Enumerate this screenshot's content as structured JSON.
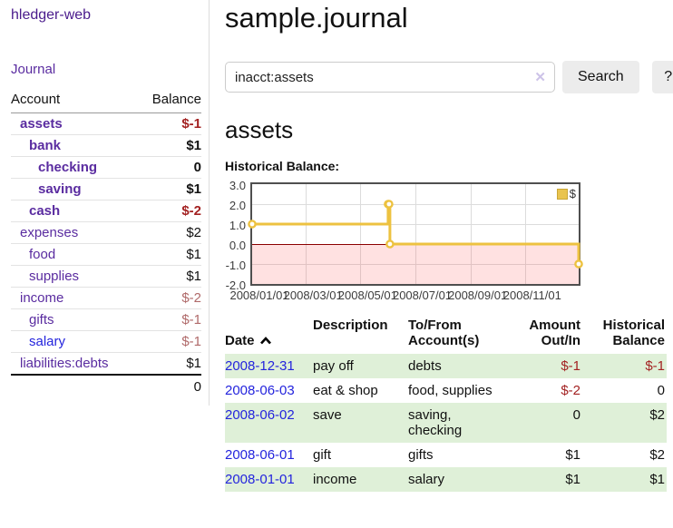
{
  "brand": {
    "title": "hledger-web"
  },
  "sidebar": {
    "journal_link": "Journal",
    "accounts": {
      "col_account": "Account",
      "col_balance": "Balance",
      "rows": [
        {
          "name": "assets",
          "balance": "$-1"
        },
        {
          "name": "bank",
          "balance": "$1"
        },
        {
          "name": "checking",
          "balance": "0"
        },
        {
          "name": "saving",
          "balance": "$1"
        },
        {
          "name": "cash",
          "balance": "$-2"
        },
        {
          "name": "expenses",
          "balance": "$2"
        },
        {
          "name": "food",
          "balance": "$1"
        },
        {
          "name": "supplies",
          "balance": "$1"
        },
        {
          "name": "income",
          "balance": "$-2"
        },
        {
          "name": "gifts",
          "balance": "$-1"
        },
        {
          "name": "salary",
          "balance": "$-1"
        },
        {
          "name": "liabilities:debts",
          "balance": "$1"
        }
      ],
      "total": "0"
    }
  },
  "main": {
    "title": "sample.journal",
    "search": {
      "value": "inacct:assets",
      "clear_icon": "✕",
      "search_button": "Search",
      "help_button": "?"
    },
    "account_heading": "assets",
    "section_label": "Historical Balance:"
  },
  "chart_data": {
    "type": "line",
    "step": true,
    "title": "Historical Balance",
    "series": [
      {
        "name": "$",
        "color": "#edc240",
        "points": [
          [
            "2008-01-01",
            1
          ],
          [
            "2008-06-01",
            2
          ],
          [
            "2008-06-02",
            2
          ],
          [
            "2008-06-03",
            0
          ],
          [
            "2008-12-31",
            -1
          ]
        ]
      }
    ],
    "xrange": [
      "2008-01-01",
      "2008-12-31"
    ],
    "ylim": [
      -2,
      3
    ],
    "yticks": [
      "3.0",
      "2.0",
      "1.0",
      "0.0",
      "-1.0",
      "-2.0"
    ],
    "xticks": [
      "2008/01/01",
      "2008/03/01",
      "2008/05/01",
      "2008/07/01",
      "2008/09/01",
      "2008/11/01"
    ],
    "legend": "$",
    "legend_position": "top-right",
    "grid": true,
    "zero_line_color": "#8b0000",
    "negative_fill": "rgba(255,70,70,0.16)"
  },
  "register": {
    "headers": {
      "date": "Date",
      "description": "Description",
      "accounts": "To/From\nAccount(s)",
      "amount": "Amount\nOut/In",
      "balance": "Historical\nBalance"
    },
    "rows": [
      {
        "date": "2008-12-31",
        "description": "pay off",
        "accounts": "debts",
        "amount": "$-1",
        "balance": "$-1"
      },
      {
        "date": "2008-06-03",
        "description": "eat & shop",
        "accounts": "food, supplies",
        "amount": "$-2",
        "balance": "0"
      },
      {
        "date": "2008-06-02",
        "description": "save",
        "accounts": "saving, checking",
        "amount": "0",
        "balance": "$2"
      },
      {
        "date": "2008-06-01",
        "description": "gift",
        "accounts": "gifts",
        "amount": "$1",
        "balance": "$2"
      },
      {
        "date": "2008-01-01",
        "description": "income",
        "accounts": "salary",
        "amount": "$1",
        "balance": "$1"
      }
    ]
  }
}
